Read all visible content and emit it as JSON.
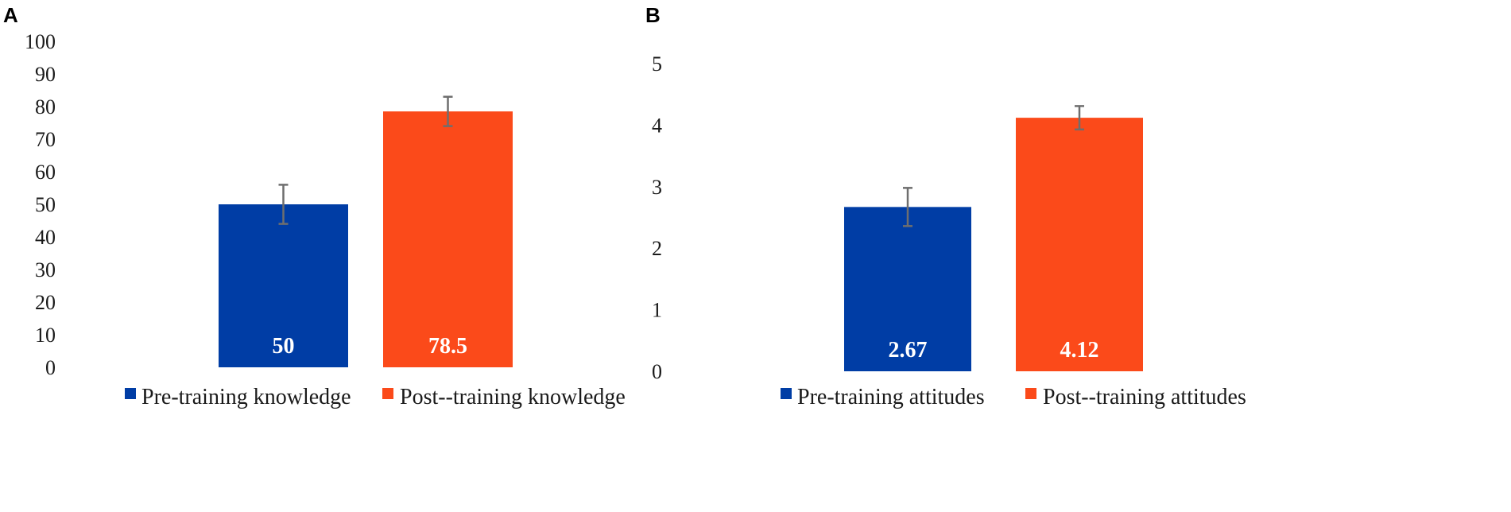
{
  "chart_data": [
    {
      "panel": "A",
      "type": "bar",
      "categories": [
        "Pre-training knowledge",
        "Post--training knowledge"
      ],
      "values": [
        50,
        78.5
      ],
      "value_labels": [
        "50",
        "78.5"
      ],
      "error": [
        6,
        4.5
      ],
      "colors": [
        "#003da5",
        "#fb4a1a"
      ],
      "ylim": [
        0,
        100
      ],
      "yticks": [
        0,
        10,
        20,
        30,
        40,
        50,
        60,
        70,
        80,
        90,
        100
      ],
      "grid": false,
      "legend": "bottom",
      "title": "",
      "xlabel": "",
      "ylabel": ""
    },
    {
      "panel": "B",
      "type": "bar",
      "categories": [
        "Pre-training attitudes",
        "Post--training  attitudes"
      ],
      "values": [
        2.67,
        4.12
      ],
      "value_labels": [
        "2.67",
        "4.12"
      ],
      "error": [
        0.31,
        0.19
      ],
      "colors": [
        "#003da5",
        "#fb4a1a"
      ],
      "ylim": [
        0,
        5
      ],
      "yticks": [
        0,
        1,
        2,
        3,
        4,
        5
      ],
      "grid": false,
      "legend": "bottom",
      "title": "",
      "xlabel": "",
      "ylabel": ""
    }
  ]
}
